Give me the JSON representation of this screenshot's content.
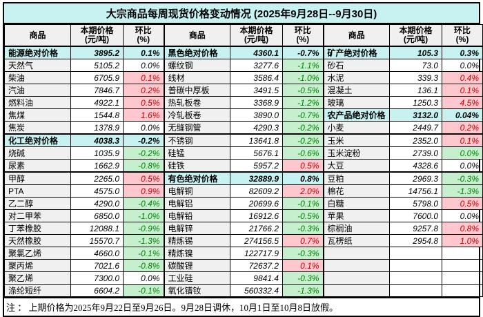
{
  "title": "大宗商品每周现货价格变动情况 (2025年9月28日--9月30日)",
  "header": {
    "commodity": "商品",
    "price_l1": "本期价格",
    "price_l2": "(元/吨)",
    "chg_l1": "环比",
    "chg_l2": "(%)"
  },
  "note": "注 ： 上期价格为2025年9月22日至9月26日。9月28日调休，10月1日至10月8日放假。",
  "colors": {
    "section_bg": "#c8f2f2",
    "name_bg": "#f0f0f0",
    "up_bg": "#ffc7ce",
    "up_text": "#c00000",
    "down_bg": "#c6efce",
    "down_text": "#008000",
    "border": "#000000"
  },
  "groups": [
    {
      "rows": [
        {
          "name": "能源绝对价格",
          "price": "3895.2",
          "chg": "0.1%",
          "kind": "section"
        },
        {
          "name": "天然气",
          "price": "5105.2",
          "chg": "0.0%",
          "kind": "item",
          "trend": "flat"
        },
        {
          "name": "柴油",
          "price": "6705.9",
          "chg": "0.1%",
          "kind": "item",
          "trend": "up"
        },
        {
          "name": "汽油",
          "price": "7846.7",
          "chg": "0.2%",
          "kind": "item",
          "trend": "up"
        },
        {
          "name": "燃料油",
          "price": "4922.1",
          "chg": "0.5%",
          "kind": "item",
          "trend": "up"
        },
        {
          "name": "焦煤",
          "price": "1544.8",
          "chg": "1.6%",
          "kind": "item",
          "trend": "up"
        },
        {
          "name": "焦炭",
          "price": "1378.9",
          "chg": "0.0%",
          "kind": "item",
          "trend": "flat"
        },
        {
          "name": "化工绝对价格",
          "price": "4038.3",
          "chg": "-0.2%",
          "kind": "section"
        },
        {
          "name": "烧碱",
          "price": "1035.9",
          "chg": "-0.2%",
          "kind": "item",
          "trend": "down"
        },
        {
          "name": "尿素",
          "price": "1662.9",
          "chg": "-0.8%",
          "kind": "item",
          "trend": "down"
        },
        {
          "name": "甲醇",
          "price": "2265.0",
          "chg": "0.5%",
          "kind": "item",
          "trend": "up"
        },
        {
          "name": "PTA",
          "price": "4575.0",
          "chg": "0.9%",
          "kind": "item",
          "trend": "up"
        },
        {
          "name": "乙二醇",
          "price": "4290.0",
          "chg": "-0.4%",
          "kind": "item",
          "trend": "down"
        },
        {
          "name": "对二甲苯",
          "price": "6850.0",
          "chg": "-1.0%",
          "kind": "item",
          "trend": "down"
        },
        {
          "name": "丁苯橡胶",
          "price": "12088.1",
          "chg": "-0.9%",
          "kind": "item",
          "trend": "down"
        },
        {
          "name": "天然橡胶",
          "price": "15570.7",
          "chg": "-1.3%",
          "kind": "item",
          "trend": "down"
        },
        {
          "name": "聚氯乙烯",
          "price": "4660.0",
          "chg": "-0.1%",
          "kind": "item",
          "trend": "down"
        },
        {
          "name": "聚丙烯",
          "price": "7021.6",
          "chg": "-0.8%",
          "kind": "item",
          "trend": "down"
        },
        {
          "name": "聚乙烯",
          "price": "7300.0",
          "chg": "0.0%",
          "kind": "item",
          "trend": "flat"
        },
        {
          "name": "涤纶短纤",
          "price": "6604.2",
          "chg": "-0.1%",
          "kind": "item",
          "trend": "down"
        }
      ]
    },
    {
      "rows": [
        {
          "name": "黑色绝对价格",
          "price": "4360.1",
          "chg": "-0.7%",
          "kind": "section"
        },
        {
          "name": "螺纹钢",
          "price": "3277.6",
          "chg": "-1.1%",
          "kind": "item",
          "trend": "down"
        },
        {
          "name": "线材",
          "price": "3586.4",
          "chg": "-1.0%",
          "kind": "item",
          "trend": "down"
        },
        {
          "name": "普碳中厚板",
          "price": "3491.5",
          "chg": "-0.5%",
          "kind": "item",
          "trend": "down"
        },
        {
          "name": "热轧板卷",
          "price": "3368.9",
          "chg": "-1.2%",
          "kind": "item",
          "trend": "down"
        },
        {
          "name": "冷轧板卷",
          "price": "3890.0",
          "chg": "-0.7%",
          "kind": "item",
          "trend": "down"
        },
        {
          "name": "无缝钢管",
          "price": "4290.3",
          "chg": "-0.2%",
          "kind": "item",
          "trend": "down"
        },
        {
          "name": "不锈钢",
          "price": "13641.8",
          "chg": "-0.2%",
          "kind": "item",
          "trend": "down"
        },
        {
          "name": "硅锰",
          "price": "5676.1",
          "chg": "-0.6%",
          "kind": "item",
          "trend": "down"
        },
        {
          "name": "硅铁",
          "price": "5957.2",
          "chg": "0.5%",
          "kind": "item",
          "trend": "up"
        },
        {
          "name": "有色绝对价格",
          "price": "32889.9",
          "chg": "0.8%",
          "kind": "section"
        },
        {
          "name": "电解铜",
          "price": "82609.2",
          "chg": "2.0%",
          "kind": "item",
          "trend": "up"
        },
        {
          "name": "电解铝",
          "price": "20699.6",
          "chg": "-0.1%",
          "kind": "item",
          "trend": "down"
        },
        {
          "name": "电解铅",
          "price": "16912.6",
          "chg": "-0.5%",
          "kind": "item",
          "trend": "down"
        },
        {
          "name": "电解锌",
          "price": "21766.2",
          "chg": "-0.3%",
          "kind": "item",
          "trend": "down"
        },
        {
          "name": "精炼锡",
          "price": "274156.5",
          "chg": "0.7%",
          "kind": "item",
          "trend": "up"
        },
        {
          "name": "精炼镍",
          "price": "122717.9",
          "chg": "-0.3%",
          "kind": "item",
          "trend": "down"
        },
        {
          "name": "碳酸锂",
          "price": "72637.2",
          "chg": "0.1%",
          "kind": "item",
          "trend": "up"
        },
        {
          "name": "工业硅",
          "price": "9841.4",
          "chg": "-0.3%",
          "kind": "item",
          "trend": "down"
        },
        {
          "name": "氧化镨钕",
          "price": "560332.4",
          "chg": "-1.3%",
          "kind": "item",
          "trend": "down"
        }
      ]
    },
    {
      "rows": [
        {
          "name": "矿产绝对价格",
          "price": "105.3",
          "chg": "0.3%",
          "kind": "section"
        },
        {
          "name": "砂石",
          "price": "73.0",
          "chg": "0.0%",
          "kind": "item",
          "trend": "flat"
        },
        {
          "name": "水泥",
          "price": "339.3",
          "chg": "0.4%",
          "kind": "item",
          "trend": "up"
        },
        {
          "name": "混凝土",
          "price": "136.1",
          "chg": "0.1%",
          "kind": "item",
          "trend": "up"
        },
        {
          "name": "玻璃",
          "price": "1250.3",
          "chg": "4.5%",
          "kind": "item",
          "trend": "up"
        },
        {
          "name": "农产品绝对价格",
          "price": "3132.0",
          "chg": "0.04%",
          "kind": "section"
        },
        {
          "name": "小麦",
          "price": "2449.7",
          "chg": "0.2%",
          "kind": "item",
          "trend": "up"
        },
        {
          "name": "玉米",
          "price": "2352.0",
          "chg": "0.1%",
          "kind": "item",
          "trend": "up"
        },
        {
          "name": "玉米淀粉",
          "price": "2739.0",
          "chg": "0.0%",
          "kind": "item",
          "trend": "down"
        },
        {
          "name": "大豆",
          "price": "4328.6",
          "chg": "0.0%",
          "kind": "item",
          "trend": "flat"
        },
        {
          "name": "豆粕",
          "price": "2969.3",
          "chg": "-0.3%",
          "kind": "item",
          "trend": "down"
        },
        {
          "name": "棉花",
          "price": "14756.1",
          "chg": "-1.3%",
          "kind": "item",
          "trend": "down"
        },
        {
          "name": "白糖",
          "price": "5798.0",
          "chg": "0.5%",
          "kind": "item",
          "trend": "up"
        },
        {
          "name": "苹果",
          "price": "7600.0",
          "chg": "0.0%",
          "kind": "item",
          "trend": "flat"
        },
        {
          "name": "棕榈油",
          "price": "9257.8",
          "chg": "0.8%",
          "kind": "item",
          "trend": "up"
        },
        {
          "name": "瓦楞纸",
          "price": "2954.8",
          "chg": "1.0%",
          "kind": "item",
          "trend": "up"
        },
        {
          "name": "",
          "price": "",
          "chg": "",
          "kind": "empty"
        },
        {
          "name": "",
          "price": "",
          "chg": "",
          "kind": "empty"
        },
        {
          "name": "",
          "price": "",
          "chg": "",
          "kind": "empty"
        },
        {
          "name": "",
          "price": "",
          "chg": "",
          "kind": "empty"
        }
      ]
    }
  ]
}
